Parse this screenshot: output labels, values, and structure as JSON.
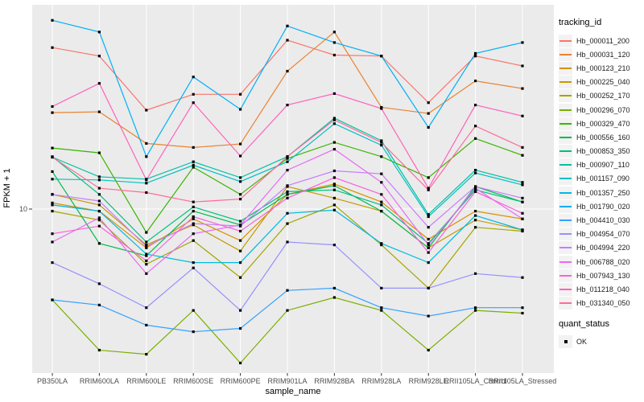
{
  "figure": {
    "background": "#FFFFFF",
    "panel_background": "#EBEBEB",
    "gridline_color": "#FFFFFF",
    "tick_color": "#333333",
    "tick_label_color": "#4D4D4D"
  },
  "legend": {
    "tracking_title": "tracking_id",
    "quant_title": "quant_status",
    "quant_items": [
      {
        "label": "OK",
        "marker": "black-square"
      }
    ],
    "key_background": "#F2F2F2"
  },
  "chart_data": {
    "type": "line",
    "title": "",
    "xlabel": "sample_name",
    "ylabel": "FPKM + 1",
    "y_scale": "log10",
    "y_ticks": [
      10
    ],
    "ylim": [
      2,
      65
    ],
    "grid": "major",
    "legend_position": "right",
    "point_marker": "black-square",
    "categories": [
      "PB350LA",
      "RRIM600LA",
      "RRIM600LE",
      "RRIM600SE",
      "RRIM600PE",
      "RRIM901LA",
      "RRIM928BA",
      "RRIM928LA",
      "RRIM928LE",
      "RRII105LA_Control",
      "RRII105LA_Stressed"
    ],
    "series": [
      {
        "name": "Hb_000011_200",
        "color": "#F8766D",
        "values": [
          46.7,
          43.1,
          25.7,
          29.9,
          29.9,
          50.1,
          43.5,
          43.1,
          27.6,
          43.1,
          39.2
        ]
      },
      {
        "name": "Hb_000031_120",
        "color": "#EA8331",
        "values": [
          25.1,
          25.3,
          18.7,
          18.0,
          18.6,
          37.3,
          54.2,
          26.4,
          24.9,
          34.0,
          31.6
        ]
      },
      {
        "name": "Hb_000123_210",
        "color": "#D89000",
        "values": [
          10.6,
          9.8,
          6.9,
          9.1,
          7.4,
          11.5,
          12.7,
          10.7,
          7.5,
          9.8,
          9.1
        ]
      },
      {
        "name": "Hb_000225_040",
        "color": "#C49A00",
        "values": [
          11.5,
          10.4,
          7.1,
          8.6,
          6.7,
          12.4,
          11.1,
          9.8,
          6.9,
          9.0,
          8.2
        ]
      },
      {
        "name": "Hb_000252_170",
        "color": "#A3A500",
        "values": [
          9.8,
          9.0,
          5.9,
          7.4,
          5.2,
          8.7,
          10.4,
          7.1,
          4.7,
          8.4,
          8.1
        ]
      },
      {
        "name": "Hb_000296_070",
        "color": "#7CAE00",
        "values": [
          4.2,
          2.6,
          2.5,
          3.8,
          2.3,
          3.8,
          4.3,
          3.8,
          2.6,
          3.8,
          3.7
        ]
      },
      {
        "name": "Hb_000329_470",
        "color": "#39B600",
        "values": [
          17.9,
          17.1,
          8.0,
          14.9,
          11.5,
          16.2,
          18.9,
          16.5,
          13.5,
          19.6,
          16.7
        ]
      },
      {
        "name": "Hb_000556_160",
        "color": "#00BB4E",
        "values": [
          14.3,
          7.2,
          6.4,
          9.8,
          8.6,
          11.5,
          12.5,
          9.8,
          6.9,
          12.4,
          10.7
        ]
      },
      {
        "name": "Hb_000853_350",
        "color": "#00BF7D",
        "values": [
          16.5,
          11.5,
          7.3,
          10.2,
          8.9,
          11.8,
          12.0,
          10.4,
          7.2,
          12.0,
          10.7
        ]
      },
      {
        "name": "Hb_000907_110",
        "color": "#00C1A3",
        "values": [
          16.4,
          13.6,
          13.3,
          15.7,
          13.5,
          16.5,
          23.8,
          19.2,
          9.5,
          14.5,
          12.9
        ]
      },
      {
        "name": "Hb_001157_090",
        "color": "#00BFC4",
        "values": [
          13.3,
          13.2,
          12.8,
          15.2,
          13.0,
          15.7,
          22.6,
          18.4,
          9.3,
          14.1,
          12.6
        ]
      },
      {
        "name": "Hb_001357_250",
        "color": "#00BAE0",
        "values": [
          10.4,
          9.8,
          6.5,
          6.0,
          6.0,
          9.6,
          9.9,
          7.2,
          6.0,
          9.4,
          8.2
        ]
      },
      {
        "name": "Hb_001790_020",
        "color": "#00B0F6",
        "values": [
          60.6,
          54.2,
          16.5,
          35.3,
          25.9,
          57.4,
          49.0,
          43.1,
          21.8,
          44.2,
          49.0
        ]
      },
      {
        "name": "Hb_004410_030",
        "color": "#35A2FF",
        "values": [
          4.2,
          4.0,
          3.3,
          3.1,
          3.2,
          4.6,
          4.7,
          3.9,
          3.6,
          3.9,
          3.9
        ]
      },
      {
        "name": "Hb_004954_070",
        "color": "#9590FF",
        "values": [
          6.0,
          4.9,
          3.9,
          5.7,
          3.8,
          7.3,
          7.1,
          4.7,
          4.7,
          5.4,
          5.2
        ]
      },
      {
        "name": "Hb_004994_220",
        "color": "#C77CFF",
        "values": [
          11.5,
          10.8,
          7.0,
          8.7,
          8.5,
          12.5,
          14.4,
          14.0,
          8.4,
          12.4,
          11.1
        ]
      },
      {
        "name": "Hb_006788_020",
        "color": "#E76BF3",
        "values": [
          7.3,
          9.2,
          5.4,
          7.9,
          8.6,
          14.5,
          17.7,
          12.9,
          7.1,
          12.2,
          9.1
        ]
      },
      {
        "name": "Hb_007943_130",
        "color": "#FA62DB",
        "values": [
          7.9,
          8.5,
          6.1,
          9.3,
          8.1,
          11.1,
          13.5,
          11.5,
          6.6,
          11.8,
          9.6
        ]
      },
      {
        "name": "Hb_011218_040",
        "color": "#FF62BC",
        "values": [
          26.6,
          33.2,
          13.2,
          27.6,
          16.6,
          27.0,
          30.1,
          26.1,
          12.2,
          27.0,
          24.3
        ]
      },
      {
        "name": "Hb_031340_050",
        "color": "#FF6A98",
        "values": [
          16.4,
          12.2,
          11.7,
          10.7,
          11.0,
          16.5,
          23.4,
          18.9,
          12.0,
          22.1,
          18.0
        ]
      }
    ]
  }
}
